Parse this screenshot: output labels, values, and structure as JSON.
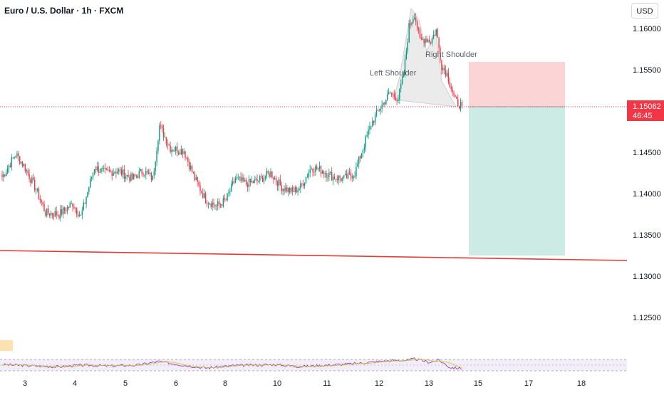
{
  "header": {
    "title": "Euro / U.S. Dollar · 1h · FXCM",
    "currency": "USD"
  },
  "price_label": {
    "price": "1.15062",
    "countdown": "46:45",
    "color": "#f23645"
  },
  "colors": {
    "up": "#089981",
    "down": "#f23645",
    "trendline": "#e53935",
    "stop_zone": "#fbd5d5",
    "target_zone": "#cdebe5"
  },
  "chart_data": {
    "type": "candlestick",
    "title": "Euro / U.S. Dollar · 1h · FXCM",
    "y_ticks": [
      "1.16000",
      "1.15500",
      "1.15000",
      "1.14500",
      "1.14000",
      "1.13500",
      "1.13000",
      "1.12500"
    ],
    "ylim": [
      1.121,
      1.1652
    ],
    "x_ticks": [
      "3",
      "4",
      "5",
      "6",
      "8",
      "10",
      "11",
      "12",
      "13",
      "15",
      "17",
      "18"
    ],
    "current_price": 1.15062,
    "annotations": [
      "Left Shoulder",
      "Right Shoulder"
    ],
    "pattern": "head-and-shoulders",
    "position": {
      "type": "short",
      "entry": 1.15062,
      "stop": 1.1561,
      "target": 1.1325
    },
    "trendline": {
      "start": 1.1337,
      "end": 1.1319
    },
    "anchors": [
      {
        "i": 0,
        "p": 1.142
      },
      {
        "i": 10,
        "p": 1.1448
      },
      {
        "i": 16,
        "p": 1.1434
      },
      {
        "i": 25,
        "p": 1.1405
      },
      {
        "i": 32,
        "p": 1.1377
      },
      {
        "i": 42,
        "p": 1.1375
      },
      {
        "i": 52,
        "p": 1.1388
      },
      {
        "i": 58,
        "p": 1.1372
      },
      {
        "i": 68,
        "p": 1.1432
      },
      {
        "i": 76,
        "p": 1.1425
      },
      {
        "i": 85,
        "p": 1.1428
      },
      {
        "i": 96,
        "p": 1.1418
      },
      {
        "i": 104,
        "p": 1.1428
      },
      {
        "i": 111,
        "p": 1.1418
      },
      {
        "i": 116,
        "p": 1.1482
      },
      {
        "i": 124,
        "p": 1.1455
      },
      {
        "i": 134,
        "p": 1.1452
      },
      {
        "i": 142,
        "p": 1.1418
      },
      {
        "i": 150,
        "p": 1.1393
      },
      {
        "i": 158,
        "p": 1.1385
      },
      {
        "i": 165,
        "p": 1.1392
      },
      {
        "i": 172,
        "p": 1.1418
      },
      {
        "i": 180,
        "p": 1.1412
      },
      {
        "i": 188,
        "p": 1.1415
      },
      {
        "i": 198,
        "p": 1.1425
      },
      {
        "i": 206,
        "p": 1.1408
      },
      {
        "i": 214,
        "p": 1.1402
      },
      {
        "i": 220,
        "p": 1.1408
      },
      {
        "i": 228,
        "p": 1.1432
      },
      {
        "i": 236,
        "p": 1.1428
      },
      {
        "i": 244,
        "p": 1.142
      },
      {
        "i": 252,
        "p": 1.1418
      },
      {
        "i": 260,
        "p": 1.1425
      },
      {
        "i": 266,
        "p": 1.1455
      },
      {
        "i": 272,
        "p": 1.1484
      },
      {
        "i": 278,
        "p": 1.1502
      },
      {
        "i": 286,
        "p": 1.1522
      },
      {
        "i": 292,
        "p": 1.1515
      },
      {
        "i": 296,
        "p": 1.1545
      },
      {
        "i": 300,
        "p": 1.1602
      },
      {
        "i": 304,
        "p": 1.1618
      },
      {
        "i": 308,
        "p": 1.1585
      },
      {
        "i": 312,
        "p": 1.1588
      },
      {
        "i": 316,
        "p": 1.1585
      },
      {
        "i": 320,
        "p": 1.1598
      },
      {
        "i": 324,
        "p": 1.1555
      },
      {
        "i": 328,
        "p": 1.1545
      },
      {
        "i": 334,
        "p": 1.1512
      },
      {
        "i": 339,
        "p": 1.1506
      }
    ],
    "rsi": {
      "levels": [
        70,
        50,
        30
      ],
      "anchors": [
        {
          "i": 0,
          "v": 52
        },
        {
          "i": 20,
          "v": 48
        },
        {
          "i": 40,
          "v": 44
        },
        {
          "i": 60,
          "v": 50
        },
        {
          "i": 80,
          "v": 47
        },
        {
          "i": 100,
          "v": 50
        },
        {
          "i": 115,
          "v": 63
        },
        {
          "i": 130,
          "v": 52
        },
        {
          "i": 150,
          "v": 40
        },
        {
          "i": 170,
          "v": 48
        },
        {
          "i": 200,
          "v": 52
        },
        {
          "i": 220,
          "v": 45
        },
        {
          "i": 240,
          "v": 50
        },
        {
          "i": 260,
          "v": 55
        },
        {
          "i": 280,
          "v": 64
        },
        {
          "i": 300,
          "v": 68
        },
        {
          "i": 304,
          "v": 72
        },
        {
          "i": 315,
          "v": 60
        },
        {
          "i": 322,
          "v": 68
        },
        {
          "i": 330,
          "v": 42
        },
        {
          "i": 339,
          "v": 38
        }
      ]
    }
  }
}
